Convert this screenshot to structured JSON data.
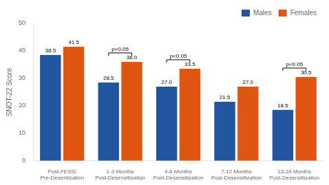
{
  "chart_data": {
    "type": "bar",
    "categories": [
      "Post-FESS/\nPre-Desentization",
      "1-3 Months\nPost-Desensitization",
      "4-6 Months\nPost-Desensitization",
      "7-12 Months\nPost-Desensitization",
      "13-24 Months\nPost-Desensitization"
    ],
    "series": [
      {
        "name": "Males",
        "color": "#2255a0",
        "values": [
          38.5,
          28.5,
          27.0,
          21.5,
          18.5
        ],
        "value_labels": [
          "38.5",
          "28.5",
          "27.0",
          "21.5",
          "18.5"
        ]
      },
      {
        "name": "Females",
        "color": "#e05510",
        "values": [
          41.5,
          36.0,
          33.5,
          27.0,
          30.5
        ],
        "value_labels": [
          "41.5",
          "36.0",
          "33.5",
          "27.0",
          "30.5"
        ]
      }
    ],
    "ylabel": "SNOT-22 Score",
    "ylim": [
      0,
      50
    ],
    "yticks": [
      0,
      10,
      20,
      30,
      40,
      50
    ],
    "grid": false,
    "legend": "upper right",
    "data_labels": true,
    "annotations": [
      {
        "category": "1-3 Months\nPost-Desensitization",
        "text": "p<0.05"
      },
      {
        "category": "4-6 Months\nPost-Desensitization",
        "text": "p<0.05"
      },
      {
        "category": "13-24 Months\nPost-Desensitization",
        "text": "p<0.05"
      }
    ]
  }
}
